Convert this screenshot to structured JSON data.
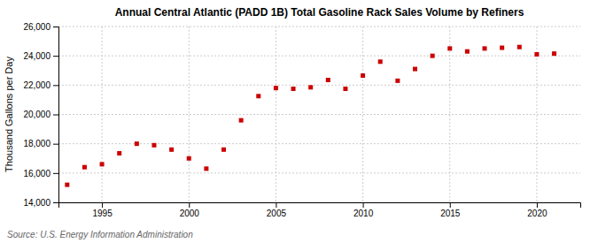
{
  "chart_data": {
    "type": "scatter",
    "title": "Annual Central Atlantic (PADD 1B) Total Gasoline Rack Sales Volume by Refiners",
    "ylabel": "Thousand Gallons per Day",
    "annotations": [
      "Source: U.S. Energy Information Administration"
    ],
    "x": [
      1993,
      1994,
      1995,
      1996,
      1997,
      1998,
      1999,
      2000,
      2001,
      2002,
      2003,
      2004,
      2005,
      2006,
      2007,
      2008,
      2009,
      2010,
      2011,
      2012,
      2013,
      2014,
      2015,
      2016,
      2017,
      2018,
      2019,
      2020,
      2021
    ],
    "values": [
      15200,
      16400,
      16600,
      17350,
      18000,
      17900,
      17600,
      17000,
      16300,
      17600,
      19600,
      21250,
      21800,
      21750,
      21850,
      22350,
      21750,
      22650,
      23600,
      22300,
      23100,
      24000,
      24500,
      24300,
      24500,
      24550,
      24600,
      24100,
      24150
    ],
    "color": "#cc0000",
    "marker": "square",
    "grid": true,
    "xlim": [
      1992.5,
      2022.5
    ],
    "xticks": [
      1995,
      2000,
      2005,
      2010,
      2015,
      2020
    ],
    "ylim": [
      14000,
      26000
    ],
    "yticks": [
      {
        "value": 14000,
        "label": "14,000"
      },
      {
        "value": 16000,
        "label": "16,000"
      },
      {
        "value": 18000,
        "label": "18,000"
      },
      {
        "value": 20000,
        "label": "20,000"
      },
      {
        "value": 22000,
        "label": "22,000"
      },
      {
        "value": 24000,
        "label": "24,000"
      },
      {
        "value": 26000,
        "label": "26,000"
      }
    ]
  }
}
